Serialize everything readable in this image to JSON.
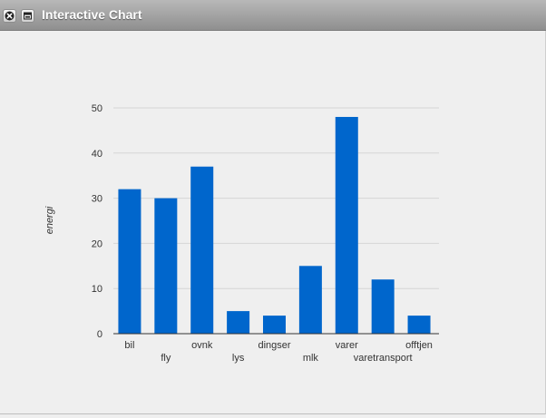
{
  "window": {
    "title": "Interactive Chart",
    "close_icon": "close-icon",
    "minimize_icon": "minimize-icon"
  },
  "colors": {
    "bar": "#0066cc",
    "gridline": "#d6d6d6",
    "background": "#efefef",
    "text": "#333333"
  },
  "chart_data": {
    "type": "bar",
    "title": "",
    "xlabel": "",
    "ylabel": "energi",
    "categories": [
      "bil",
      "fly",
      "ovnk",
      "lys",
      "dingser",
      "mlk",
      "varer",
      "varetransport",
      "offtjen"
    ],
    "values": [
      32,
      30,
      37,
      5,
      4,
      15,
      48,
      12,
      4
    ],
    "ylim": [
      0,
      50
    ],
    "yticks": [
      0,
      10,
      20,
      30,
      40,
      50
    ],
    "grid": true,
    "legend": "none"
  }
}
